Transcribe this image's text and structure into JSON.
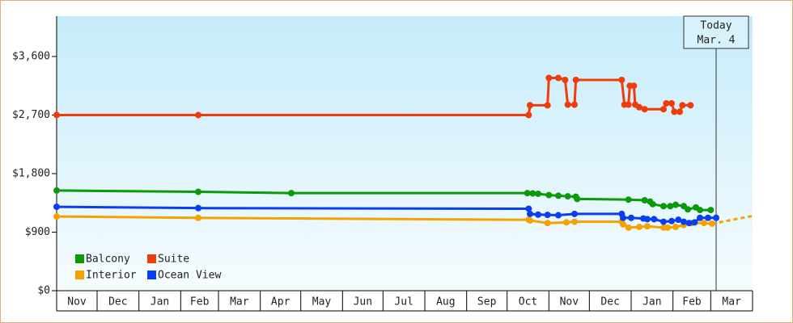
{
  "chart_data": {
    "type": "line",
    "ylim": [
      0,
      4220
    ],
    "yticks": [
      {
        "value": 0,
        "label": "$0"
      },
      {
        "value": 900,
        "label": "$900"
      },
      {
        "value": 1800,
        "label": "$1,800"
      },
      {
        "value": 2700,
        "label": "$2,700"
      },
      {
        "value": 3600,
        "label": "$3,600"
      }
    ],
    "xlim": [
      0,
      516
    ],
    "xticks": [
      {
        "value": 0,
        "label": "Nov"
      },
      {
        "value": 30,
        "label": "Dec"
      },
      {
        "value": 61,
        "label": "Jan"
      },
      {
        "value": 92,
        "label": "Feb"
      },
      {
        "value": 120,
        "label": "Mar"
      },
      {
        "value": 151,
        "label": "Apr"
      },
      {
        "value": 181,
        "label": "May"
      },
      {
        "value": 212,
        "label": "Jun"
      },
      {
        "value": 242,
        "label": "Jul"
      },
      {
        "value": 273,
        "label": "Aug"
      },
      {
        "value": 304,
        "label": "Sep"
      },
      {
        "value": 334,
        "label": "Oct"
      },
      {
        "value": 365,
        "label": "Nov"
      },
      {
        "value": 395,
        "label": "Dec"
      },
      {
        "value": 426,
        "label": "Jan"
      },
      {
        "value": 457,
        "label": "Feb"
      },
      {
        "value": 485,
        "label": "Mar"
      }
    ],
    "today": {
      "x": 489,
      "label": [
        "Today",
        "Mar. 4"
      ]
    },
    "series": [
      {
        "name": "Balcony",
        "color": "#0a9a0a",
        "x": [
          0,
          105,
          174,
          349,
          353,
          357,
          365,
          372,
          379,
          385,
          386,
          424,
          436,
          440,
          442,
          450,
          455,
          459,
          465,
          468,
          474,
          477,
          485
        ],
        "values": [
          1540,
          1520,
          1500,
          1500,
          1495,
          1490,
          1470,
          1460,
          1450,
          1445,
          1410,
          1400,
          1390,
          1370,
          1330,
          1300,
          1300,
          1320,
          1300,
          1250,
          1280,
          1240,
          1240
        ]
      },
      {
        "name": "Suite",
        "color": "#f03c0a",
        "x": [
          0,
          105,
          350,
          351,
          364,
          365,
          372,
          377,
          379,
          384,
          385,
          419,
          421,
          424,
          425,
          428,
          429,
          432,
          436,
          450,
          452,
          456,
          458,
          462,
          464,
          470
        ],
        "values": [
          2700,
          2700,
          2700,
          2850,
          2850,
          3270,
          3270,
          3240,
          2860,
          2860,
          3240,
          3240,
          2860,
          2860,
          3150,
          3150,
          2860,
          2820,
          2790,
          2790,
          2880,
          2880,
          2750,
          2750,
          2850,
          2850
        ]
      },
      {
        "name": "Interior",
        "color": "#f5a200",
        "x": [
          0,
          105,
          350,
          351,
          364,
          378,
          384,
          419,
          420,
          424,
          432,
          438,
          450,
          453,
          459,
          465,
          471,
          480,
          486
        ],
        "values": [
          1140,
          1120,
          1090,
          1080,
          1040,
          1050,
          1060,
          1060,
          1020,
          970,
          980,
          990,
          970,
          970,
          980,
          1010,
          1040,
          1040,
          1030
        ],
        "forecast": {
          "x": [
            486,
            516
          ],
          "values": [
            1030,
            1150
          ]
        }
      },
      {
        "name": "Ocean View",
        "color": "#0a3ef0",
        "x": [
          0,
          105,
          350,
          351,
          357,
          364,
          372,
          384,
          419,
          420,
          426,
          435,
          438,
          443,
          450,
          456,
          461,
          465,
          469,
          473,
          477,
          483,
          489
        ],
        "values": [
          1290,
          1270,
          1260,
          1180,
          1170,
          1165,
          1160,
          1180,
          1180,
          1120,
          1120,
          1110,
          1100,
          1100,
          1060,
          1070,
          1090,
          1060,
          1040,
          1050,
          1120,
          1120,
          1120
        ]
      }
    ]
  }
}
